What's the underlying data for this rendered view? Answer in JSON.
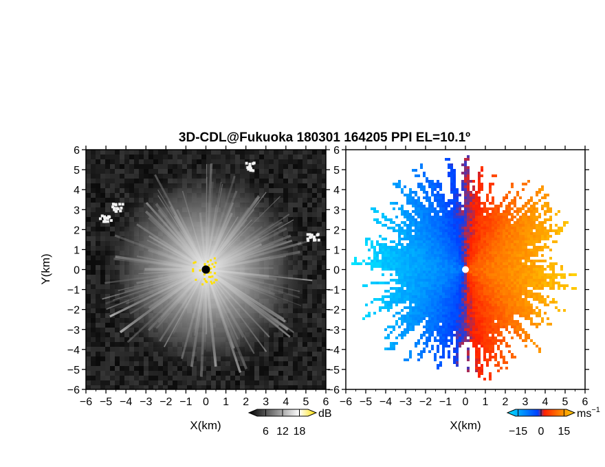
{
  "title": "3D-CDL@Fukuoka 180301 164205 PPI EL=10.1º",
  "chart_data": [
    {
      "type": "heatmap",
      "panel": "left",
      "quantity": "radar reflectivity (PPI)",
      "xlabel": "X(km)",
      "ylabel": "Y(km)",
      "xlim": [
        -6,
        6
      ],
      "ylim": [
        -6,
        6
      ],
      "xticks": [
        "−6",
        "−5",
        "−4",
        "−3",
        "−2",
        "−1",
        "0",
        "1",
        "2",
        "3",
        "4",
        "5",
        "6"
      ],
      "yticks": [
        "6",
        "5",
        "4",
        "3",
        "2",
        "1",
        "0",
        "−1",
        "−2",
        "−3",
        "−4",
        "−5",
        "−6"
      ],
      "colorbar": {
        "unit": "dB",
        "tick_labels": [
          "6",
          "12",
          "18"
        ],
        "ticks": [
          6,
          12,
          18
        ],
        "range": [
          0,
          24
        ],
        "colors": [
          "#000000",
          "#ffffff",
          "#ffe000"
        ]
      },
      "background_color": "#1a1a1a",
      "echo_radius_km": 5.2,
      "site_marker": {
        "x": 0,
        "y": 0,
        "color": "#000000"
      }
    },
    {
      "type": "heatmap",
      "panel": "right",
      "quantity": "Doppler radial velocity (PPI)",
      "xlabel": "X(km)",
      "xlim": [
        -6,
        6
      ],
      "ylim": [
        -6,
        6
      ],
      "xticks": [
        "−6",
        "−5",
        "−4",
        "−3",
        "−2",
        "−1",
        "0",
        "1",
        "2",
        "3",
        "4",
        "5",
        "6"
      ],
      "yticks": [
        "6",
        "5",
        "4",
        "3",
        "2",
        "1",
        "0",
        "−1",
        "−2",
        "−3",
        "−4",
        "−5",
        "−6"
      ],
      "colorbar": {
        "unit": "ms",
        "unit_exponent": "−1",
        "tick_labels": [
          "−15",
          "0",
          "15"
        ],
        "ticks": [
          -15,
          0,
          15
        ],
        "range": [
          -22,
          22
        ],
        "colors": [
          "#00e5ff",
          "#0040ff",
          "#ff2000",
          "#ff8000",
          "#ffd000"
        ]
      },
      "negative_side": "west (blue)",
      "positive_side": "east (orange/yellow)",
      "echo_radius_km": 5.5,
      "site_marker": {
        "x": 0,
        "y": 0,
        "color": "#ffffff"
      }
    }
  ]
}
